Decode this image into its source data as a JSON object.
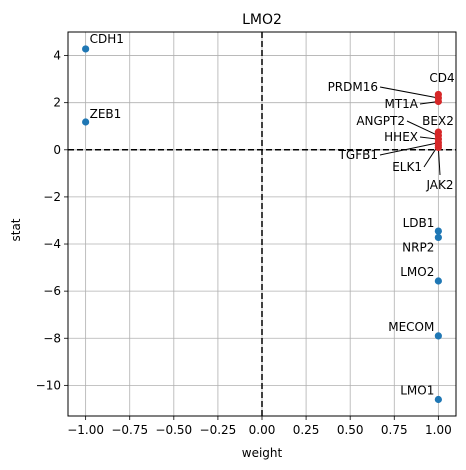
{
  "chart_data": {
    "type": "scatter",
    "title": "LMO2",
    "xlabel": "weight",
    "ylabel": "stat",
    "xlim": [
      -1.1,
      1.1
    ],
    "ylim": [
      -11.3,
      5.0
    ],
    "xticks": [
      -1.0,
      -0.75,
      -0.5,
      -0.25,
      0.0,
      0.25,
      0.5,
      0.75,
      1.0
    ],
    "xtick_labels": [
      "−1.00",
      "−0.75",
      "−0.50",
      "−0.25",
      "0.00",
      "0.25",
      "0.50",
      "0.75",
      "1.00"
    ],
    "yticks": [
      -10,
      -8,
      -6,
      -4,
      -2,
      0,
      2,
      4
    ],
    "ytick_labels": [
      "−10",
      "−8",
      "−6",
      "−4",
      "−2",
      "0",
      "2",
      "4"
    ],
    "grid": true,
    "reference_lines": {
      "x": 0,
      "y": 0,
      "style": "dashed"
    },
    "colors": {
      "default": "#1f77b4",
      "highlight": "#d62728"
    },
    "points": [
      {
        "label": "CDH1",
        "x": -1.0,
        "y": 4.28,
        "group": "default"
      },
      {
        "label": "ZEB1",
        "x": -1.0,
        "y": 1.18,
        "group": "default"
      },
      {
        "label": "CD4",
        "x": 1.0,
        "y": 2.35,
        "group": "highlight"
      },
      {
        "label": "PRDM16",
        "x": 1.0,
        "y": 2.2,
        "group": "highlight"
      },
      {
        "label": "MT1A",
        "x": 1.0,
        "y": 2.05,
        "group": "highlight"
      },
      {
        "label": "BEX2",
        "x": 1.0,
        "y": 0.75,
        "group": "highlight"
      },
      {
        "label": "ANGPT2",
        "x": 1.0,
        "y": 0.6,
        "group": "highlight"
      },
      {
        "label": "HHEX",
        "x": 1.0,
        "y": 0.45,
        "group": "highlight"
      },
      {
        "label": "TGFB1",
        "x": 1.0,
        "y": 0.3,
        "group": "highlight"
      },
      {
        "label": "ELK1",
        "x": 1.0,
        "y": 0.2,
        "group": "highlight"
      },
      {
        "label": "JAK2",
        "x": 1.0,
        "y": 0.1,
        "group": "highlight"
      },
      {
        "label": "LDB1",
        "x": 1.0,
        "y": -3.45,
        "group": "default"
      },
      {
        "label": "NRP2",
        "x": 1.0,
        "y": -3.72,
        "group": "default"
      },
      {
        "label": "LMO2",
        "x": 1.0,
        "y": -5.57,
        "group": "default"
      },
      {
        "label": "MECOM",
        "x": 1.0,
        "y": -7.9,
        "group": "default"
      },
      {
        "label": "LMO1",
        "x": 1.0,
        "y": -10.6,
        "group": "default"
      }
    ]
  }
}
